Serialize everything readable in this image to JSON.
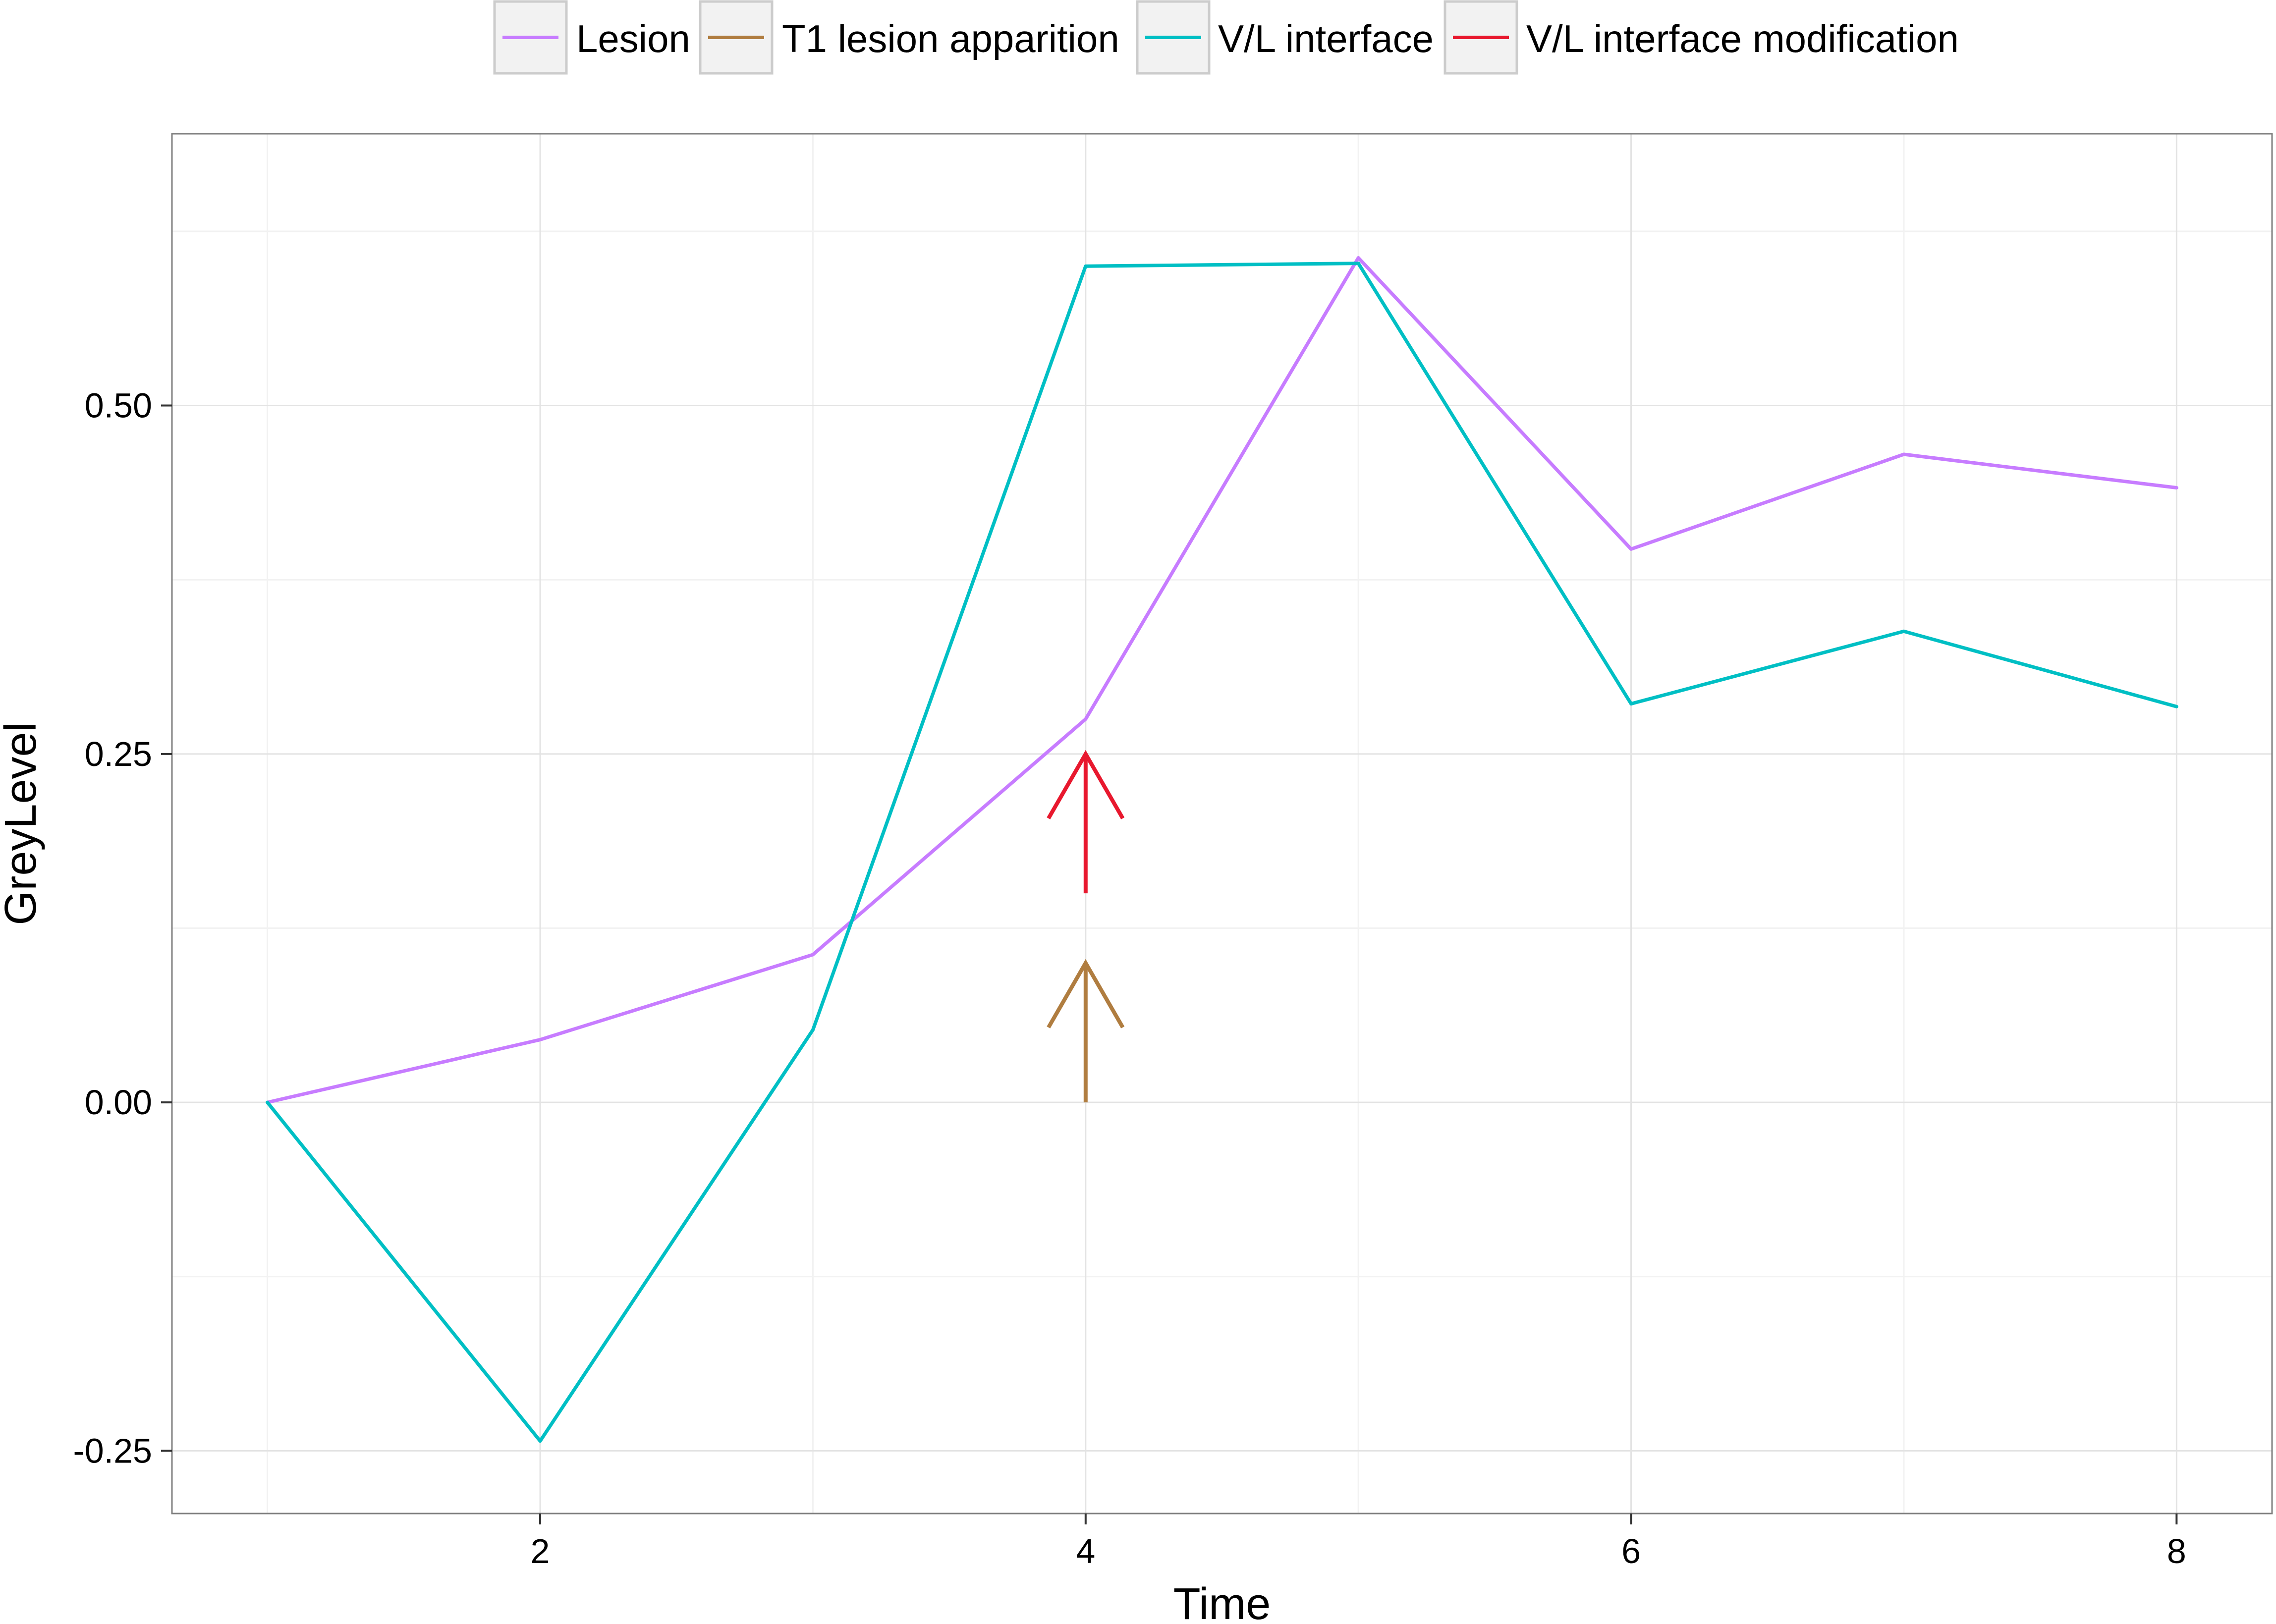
{
  "chart_data": {
    "type": "line",
    "xlabel": "Time",
    "ylabel": "GreyLevel",
    "xlim": [
      0.65,
      8.35
    ],
    "ylim": [
      -0.295,
      0.695
    ],
    "x_ticks": [
      2,
      4,
      6,
      8
    ],
    "x_tick_labels": [
      "2",
      "4",
      "6",
      "8"
    ],
    "y_ticks": [
      -0.25,
      0,
      0.25,
      0.5
    ],
    "y_tick_labels": [
      "-0.25",
      "0.00",
      "0.25",
      "0.50"
    ],
    "grid": true,
    "legend_position": "top",
    "legend": [
      {
        "label": "Lesion",
        "color": "#c77cff"
      },
      {
        "label": "T1 lesion apparition",
        "color": "#b07d40"
      },
      {
        "label": "V/L interface",
        "color": "#00bfc4"
      },
      {
        "label": "V/L interface modification",
        "color": "#e8182e"
      }
    ],
    "series": [
      {
        "name": "Lesion",
        "color": "#c77cff",
        "x": [
          1,
          2,
          3,
          4,
          5,
          6,
          7,
          8
        ],
        "values": [
          0.0,
          0.045,
          0.106,
          0.275,
          0.606,
          0.397,
          0.465,
          0.441
        ]
      },
      {
        "name": "V/L interface",
        "color": "#00bfc4",
        "x": [
          1,
          2,
          3,
          4,
          5,
          6,
          7,
          8
        ],
        "values": [
          0.0,
          -0.243,
          0.052,
          0.6,
          0.602,
          0.286,
          0.338,
          0.284
        ]
      }
    ],
    "annotations": [
      {
        "type": "arrow",
        "color": "#b07d40",
        "x": 4,
        "y_start": 0.0,
        "y_end": 0.1
      },
      {
        "type": "arrow",
        "color": "#e8182e",
        "x": 4,
        "y_start": 0.15,
        "y_end": 0.25
      }
    ]
  }
}
